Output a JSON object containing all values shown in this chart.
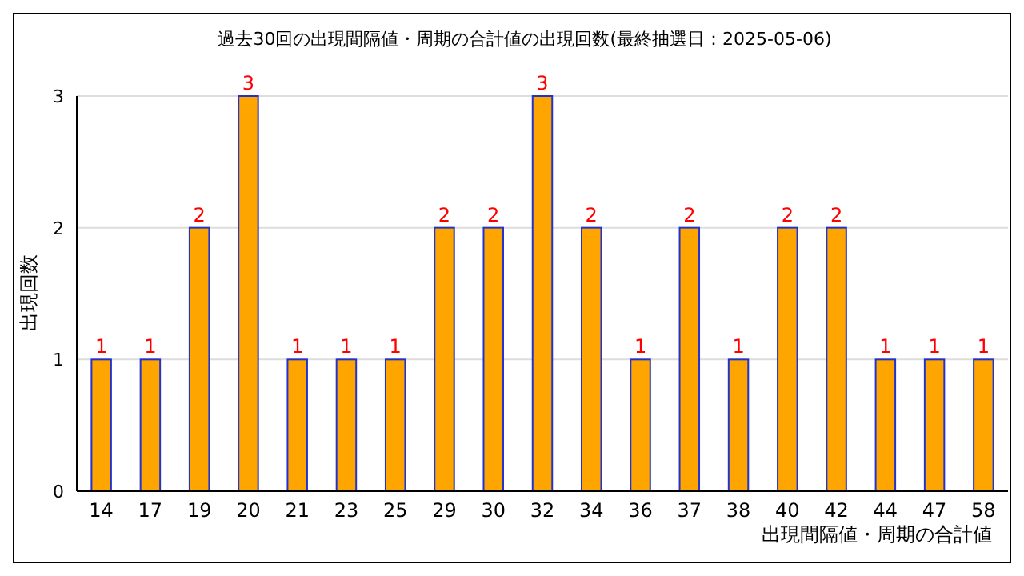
{
  "chart_data": {
    "type": "bar",
    "title": "過去30回の出現間隔値・周期の合計値の出現回数(最終抽選日：2025-05-06)",
    "xlabel": "出現間隔値・周期の合計値",
    "ylabel": "出現回数",
    "categories": [
      "14",
      "17",
      "19",
      "20",
      "21",
      "23",
      "25",
      "29",
      "30",
      "32",
      "34",
      "36",
      "37",
      "38",
      "40",
      "42",
      "44",
      "47",
      "58"
    ],
    "values": [
      1,
      1,
      2,
      3,
      1,
      1,
      1,
      2,
      2,
      3,
      2,
      1,
      2,
      1,
      2,
      2,
      1,
      1,
      1
    ],
    "color": "#ffa500",
    "ylim": [
      0,
      3
    ],
    "yticks": [
      0,
      1,
      2,
      3
    ],
    "grid": "y",
    "data_labels": true
  }
}
